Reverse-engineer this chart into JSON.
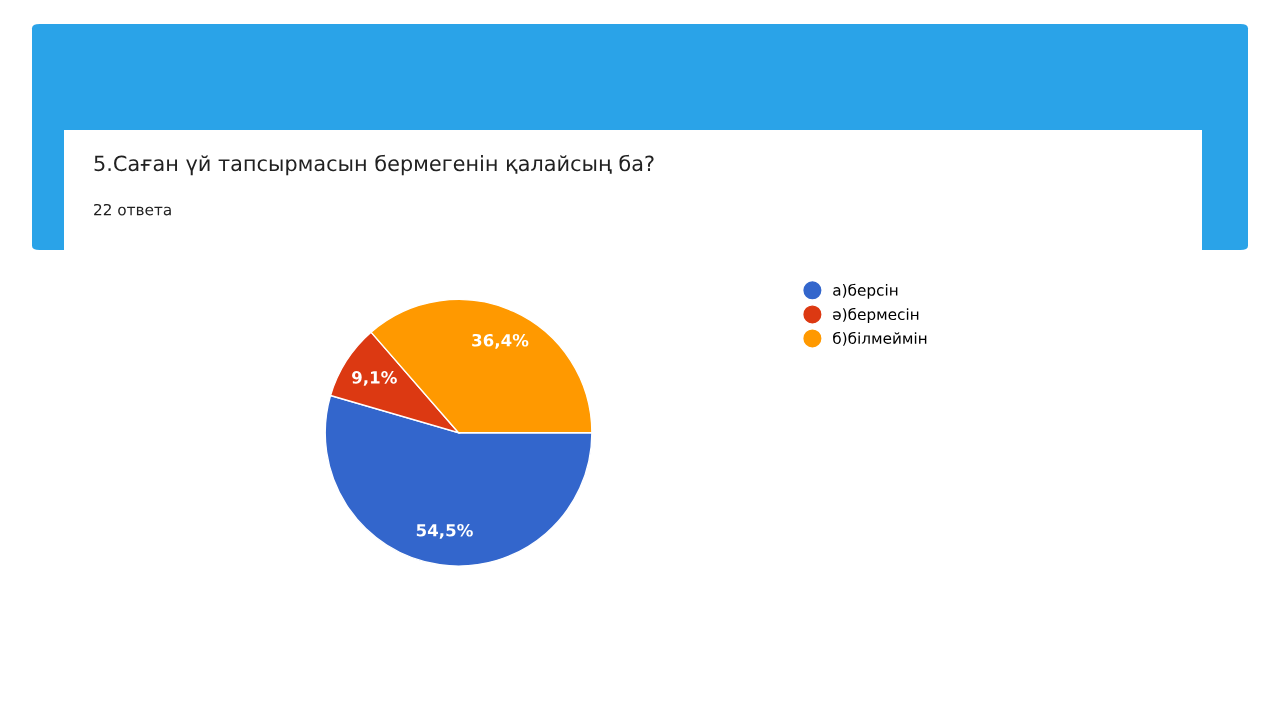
{
  "chart_data": {
    "type": "pie",
    "title": "5.Саған үй тапсырмасын бермегенін қалайсың ба?",
    "subtitle": "22 ответа",
    "categories": [
      "а)берсін",
      "ә)бермесін",
      "б)білмеймін"
    ],
    "values": [
      54.5,
      9.1,
      36.4
    ],
    "value_labels": [
      "54,5%",
      "9,1%",
      "36,4%"
    ],
    "colors": [
      "#3366cc",
      "#dc3912",
      "#ff9900"
    ],
    "legend": "right"
  }
}
